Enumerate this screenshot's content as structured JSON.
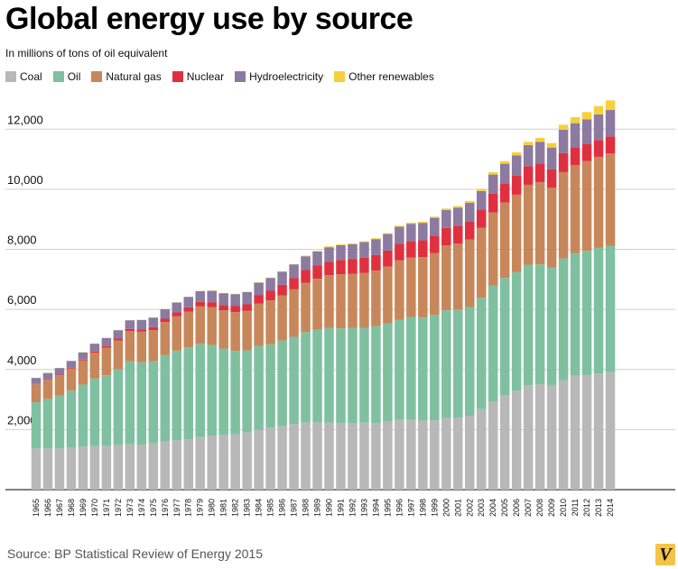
{
  "header": {
    "title": "Global energy use by source",
    "subtitle": "In millions of tons of oil equivalent"
  },
  "footer": {
    "source": "Source: BP Statistical Review of Energy 2015",
    "logo_text": "V"
  },
  "chart_data": {
    "type": "bar",
    "stacked": true,
    "title": "Global energy use by source",
    "subtitle": "In millions of tons of oil equivalent",
    "xlabel": "",
    "ylabel": "",
    "ylim": [
      0,
      13000
    ],
    "yticks": [
      2000,
      4000,
      6000,
      8000,
      10000,
      12000
    ],
    "ytick_labels": [
      "2,000",
      "4,000",
      "6,000",
      "8,000",
      "10,000",
      "12,000"
    ],
    "grid": true,
    "legend_position": "top-left",
    "categories": [
      "1965",
      "1966",
      "1967",
      "1968",
      "1969",
      "1970",
      "1971",
      "1972",
      "1973",
      "1974",
      "1975",
      "1976",
      "1977",
      "1978",
      "1979",
      "1980",
      "1981",
      "1982",
      "1983",
      "1984",
      "1985",
      "1986",
      "1987",
      "1988",
      "1989",
      "1990",
      "1991",
      "1992",
      "1993",
      "1994",
      "1995",
      "1996",
      "1997",
      "1998",
      "1999",
      "2000",
      "2001",
      "2002",
      "2003",
      "2004",
      "2005",
      "2006",
      "2007",
      "2008",
      "2009",
      "2010",
      "2011",
      "2012",
      "2013",
      "2014"
    ],
    "series": [
      {
        "name": "Coal",
        "color": "#b8b8b8",
        "values": [
          1380,
          1380,
          1370,
          1390,
          1430,
          1450,
          1450,
          1490,
          1510,
          1500,
          1540,
          1600,
          1650,
          1680,
          1750,
          1800,
          1820,
          1840,
          1910,
          1990,
          2060,
          2110,
          2180,
          2240,
          2240,
          2230,
          2220,
          2210,
          2230,
          2220,
          2270,
          2330,
          2320,
          2300,
          2310,
          2390,
          2400,
          2460,
          2680,
          2930,
          3140,
          3300,
          3480,
          3510,
          3470,
          3640,
          3790,
          3810,
          3870,
          3910
        ]
      },
      {
        "name": "Oil",
        "color": "#7fc0a0",
        "values": [
          1530,
          1640,
          1760,
          1910,
          2070,
          2250,
          2360,
          2520,
          2770,
          2740,
          2730,
          2880,
          2980,
          3060,
          3110,
          3020,
          2880,
          2780,
          2730,
          2790,
          2780,
          2860,
          2910,
          3010,
          3080,
          3150,
          3150,
          3180,
          3160,
          3230,
          3270,
          3330,
          3430,
          3430,
          3510,
          3580,
          3600,
          3620,
          3710,
          3870,
          3910,
          3950,
          4010,
          3990,
          3930,
          4060,
          4090,
          4140,
          4190,
          4210
        ]
      },
      {
        "name": "Natural gas",
        "color": "#c8875a",
        "values": [
          600,
          640,
          680,
          730,
          800,
          860,
          920,
          960,
          1000,
          1020,
          1040,
          1100,
          1140,
          1190,
          1240,
          1260,
          1270,
          1290,
          1310,
          1420,
          1460,
          1500,
          1580,
          1640,
          1700,
          1760,
          1800,
          1800,
          1830,
          1840,
          1890,
          1980,
          1980,
          2010,
          2060,
          2160,
          2190,
          2250,
          2330,
          2430,
          2510,
          2570,
          2660,
          2740,
          2650,
          2870,
          2920,
          2990,
          3020,
          3070
        ]
      },
      {
        "name": "Nuclear",
        "color": "#e0303f",
        "values": [
          10,
          15,
          20,
          25,
          30,
          40,
          50,
          60,
          70,
          80,
          100,
          110,
          130,
          140,
          150,
          160,
          180,
          200,
          220,
          270,
          320,
          350,
          380,
          420,
          440,
          450,
          480,
          480,
          500,
          520,
          530,
          550,
          550,
          560,
          580,
          580,
          600,
          610,
          600,
          620,
          630,
          630,
          620,
          620,
          610,
          630,
          600,
          560,
          560,
          570
        ]
      },
      {
        "name": "Hydroelectricity",
        "color": "#8c7aa0",
        "values": [
          200,
          210,
          220,
          230,
          240,
          260,
          270,
          280,
          290,
          310,
          320,
          320,
          330,
          350,
          360,
          380,
          390,
          400,
          410,
          420,
          430,
          440,
          450,
          460,
          470,
          480,
          490,
          500,
          520,
          530,
          550,
          560,
          570,
          580,
          590,
          600,
          600,
          610,
          620,
          640,
          660,
          680,
          700,
          720,
          730,
          780,
          800,
          830,
          850,
          880
        ]
      },
      {
        "name": "Other renewables",
        "color": "#f6cf3a",
        "values": [
          5,
          5,
          5,
          5,
          5,
          5,
          5,
          5,
          5,
          5,
          5,
          5,
          5,
          5,
          5,
          5,
          10,
          10,
          10,
          10,
          10,
          10,
          10,
          20,
          20,
          30,
          30,
          30,
          30,
          30,
          30,
          40,
          40,
          40,
          40,
          50,
          50,
          60,
          60,
          80,
          90,
          100,
          110,
          130,
          150,
          170,
          200,
          240,
          280,
          320
        ]
      }
    ]
  }
}
